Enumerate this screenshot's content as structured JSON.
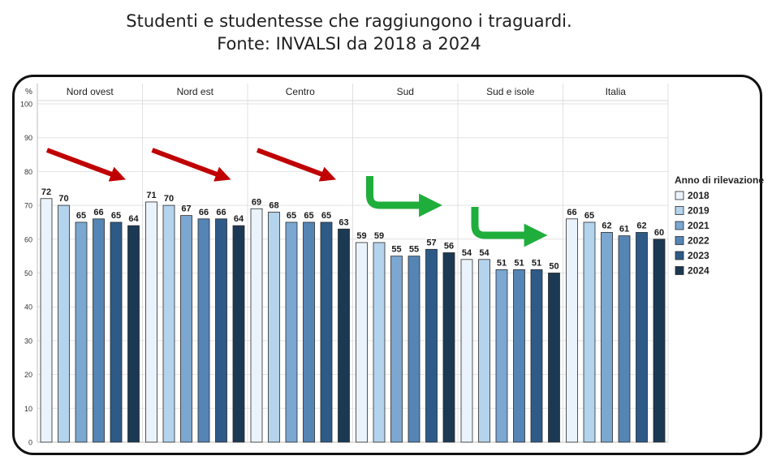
{
  "header": {
    "title_line1": "Studenti e studentesse che raggiungono i traguardi.",
    "title_line2": "Fonte: INVALSI da 2018 a 2024"
  },
  "chart_data": {
    "type": "bar",
    "y_unit": "%",
    "ylim": [
      0,
      100
    ],
    "yticks": [
      0,
      10,
      20,
      30,
      40,
      50,
      60,
      70,
      80,
      90,
      100
    ],
    "grid": true,
    "legend_position": "right",
    "legend_title": "Anno di rilevazione",
    "groups": [
      "Nord ovest",
      "Nord est",
      "Centro",
      "Sud",
      "Sud e isole",
      "Italia"
    ],
    "series": [
      {
        "name": "2018",
        "color": "#eaf3fb",
        "values": [
          72,
          71,
          69,
          59,
          54,
          66
        ]
      },
      {
        "name": "2019",
        "color": "#b4d3ec",
        "values": [
          70,
          70,
          68,
          59,
          54,
          65
        ]
      },
      {
        "name": "2021",
        "color": "#7ba7d0",
        "values": [
          65,
          67,
          65,
          55,
          51,
          62
        ]
      },
      {
        "name": "2022",
        "color": "#5585b5",
        "values": [
          66,
          66,
          65,
          55,
          51,
          61
        ]
      },
      {
        "name": "2023",
        "color": "#2e5a88",
        "values": [
          65,
          66,
          65,
          57,
          51,
          62
        ]
      },
      {
        "name": "2024",
        "color": "#1c3954",
        "values": [
          64,
          64,
          63,
          56,
          50,
          60
        ]
      }
    ],
    "annotations": [
      {
        "type": "arrow-down",
        "color": "#c00000",
        "group": "Nord ovest"
      },
      {
        "type": "arrow-down",
        "color": "#c00000",
        "group": "Nord est"
      },
      {
        "type": "arrow-down",
        "color": "#c00000",
        "group": "Centro"
      },
      {
        "type": "arrow-flat",
        "color": "#1fae3c",
        "group": "Sud"
      },
      {
        "type": "arrow-flat",
        "color": "#1fae3c",
        "group": "Sud e isole"
      }
    ]
  }
}
